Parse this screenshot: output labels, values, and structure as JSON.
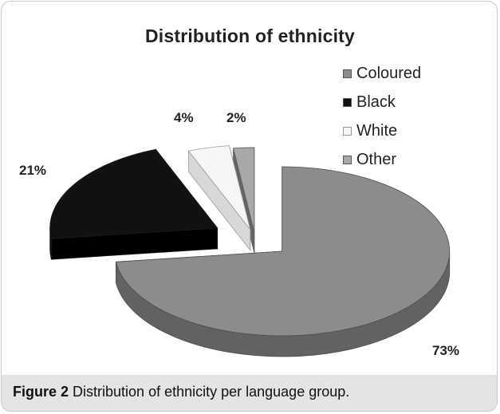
{
  "chart_data": {
    "type": "pie",
    "title": "Distribution of ethnicity",
    "categories": [
      "Coloured",
      "Black",
      "White",
      "Other"
    ],
    "values": [
      73,
      21,
      4,
      2
    ],
    "value_labels": [
      "73%",
      "21%",
      "4%",
      "2%"
    ],
    "legend": "right",
    "exploded": true,
    "three_d": true,
    "colors": [
      "#8c8c8c",
      "#111111",
      "#f6f6f6",
      "#a8a8a8"
    ]
  },
  "figure": {
    "label": "Figure 2",
    "caption": "Distribution of ethnicity per language group."
  }
}
